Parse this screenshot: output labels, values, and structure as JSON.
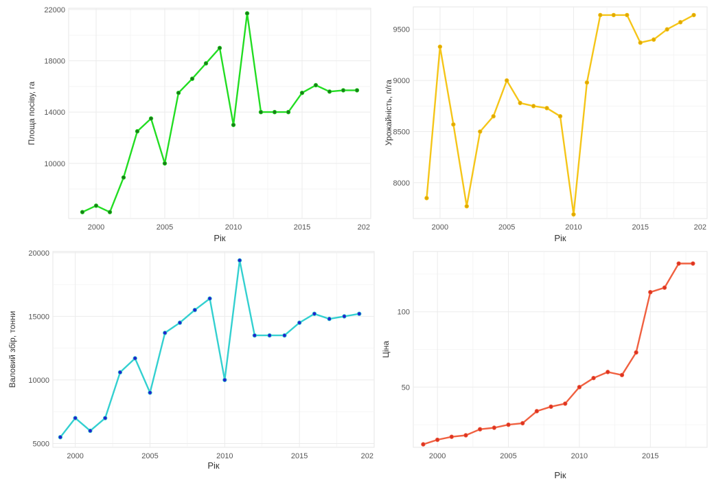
{
  "chart_data": [
    {
      "type": "line",
      "xlabel": "Рік",
      "ylabel": "Площа посіву, га",
      "xlim": [
        1998,
        2020
      ],
      "ylim": [
        5700,
        22100
      ],
      "x_ticks": [
        2000,
        2005,
        2010,
        2015
      ],
      "x_ticks_partial": "202",
      "y_ticks": [
        10000,
        14000,
        18000,
        22000
      ],
      "grid": true,
      "color": "#22dd22",
      "point_color": "#1a7a1a",
      "x": [
        1999,
        2000,
        2001,
        2002,
        2003,
        2004,
        2005,
        2006,
        2007,
        2008,
        2009,
        2010,
        2011,
        2012,
        2013,
        2014,
        2015,
        2016,
        2017,
        2018,
        2019
      ],
      "values": [
        6200,
        6700,
        6200,
        8900,
        12500,
        13500,
        10000,
        15500,
        16600,
        17800,
        19000,
        13000,
        21700,
        14000,
        14000,
        14000,
        15500,
        16100,
        15600,
        15700,
        15700
      ]
    },
    {
      "type": "line",
      "xlabel": "Рік",
      "ylabel": "Урожайність, п/га",
      "xlim": [
        1998,
        2020
      ],
      "ylim": [
        7650,
        9720
      ],
      "x_ticks": [
        2000,
        2005,
        2010,
        2015
      ],
      "x_ticks_partial": "202",
      "y_ticks": [
        8000,
        8500,
        9000,
        9500
      ],
      "grid": true,
      "color": "#f5c518",
      "point_color": "#e0a800",
      "x": [
        1999,
        2000,
        2001,
        2002,
        2003,
        2004,
        2005,
        2006,
        2007,
        2008,
        2009,
        2010,
        2011,
        2012,
        2013,
        2014,
        2015,
        2016,
        2017,
        2018,
        2019
      ],
      "values": [
        7850,
        9330,
        8570,
        7770,
        8500,
        8650,
        9000,
        8780,
        8750,
        8730,
        8650,
        7690,
        8980,
        9640,
        9640,
        9640,
        9370,
        9400,
        9500,
        9570,
        9640
      ]
    },
    {
      "type": "line",
      "xlabel": "Рік",
      "ylabel": "Валовий збір, тонни",
      "xlim": [
        1998.5,
        2020
      ],
      "ylim": [
        4700,
        20100
      ],
      "x_ticks": [
        2000,
        2005,
        2010,
        2015
      ],
      "x_ticks_partial": "202",
      "y_ticks": [
        5000,
        10000,
        15000,
        20000
      ],
      "grid": true,
      "color": "#33d0d0",
      "point_color": "#2222cc",
      "x": [
        1999,
        2000,
        2001,
        2002,
        2003,
        2004,
        2005,
        2006,
        2007,
        2008,
        2009,
        2010,
        2011,
        2012,
        2013,
        2014,
        2015,
        2016,
        2017,
        2018,
        2019
      ],
      "values": [
        5500,
        7000,
        6000,
        7000,
        10600,
        11700,
        9000,
        13700,
        14500,
        15500,
        16400,
        10000,
        19400,
        13500,
        13500,
        13500,
        14500,
        15200,
        14800,
        15000,
        15200
      ]
    },
    {
      "type": "line",
      "xlabel": "Рік",
      "ylabel": "Ціна",
      "xlim": [
        1998.3,
        2019
      ],
      "ylim": [
        10,
        140
      ],
      "x_ticks": [
        2000,
        2005,
        2010,
        2015
      ],
      "y_ticks": [
        50,
        100
      ],
      "grid": true,
      "color": "#f06040",
      "point_color": "#dd3322",
      "x": [
        1999,
        2000,
        2001,
        2002,
        2003,
        2004,
        2005,
        2006,
        2007,
        2008,
        2009,
        2010,
        2011,
        2012,
        2013,
        2014,
        2015,
        2016,
        2017,
        2018
      ],
      "values": [
        12,
        15,
        17,
        18,
        22,
        23,
        25,
        26,
        34,
        37,
        39,
        50,
        56,
        60,
        58,
        73,
        113,
        116,
        132,
        132
      ]
    }
  ]
}
